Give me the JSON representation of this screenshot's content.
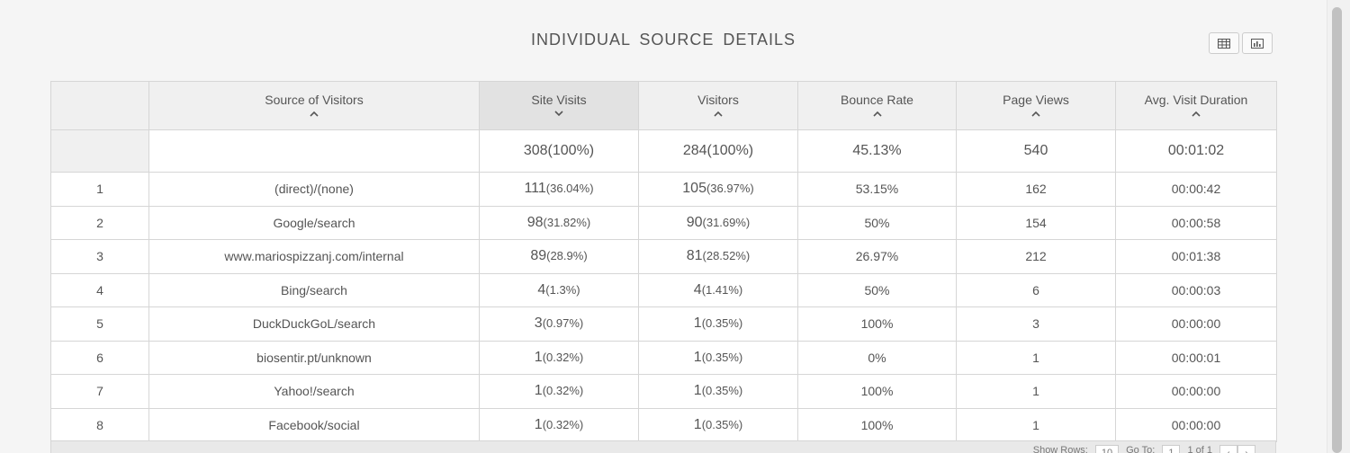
{
  "title": "INDIVIDUAL  SOURCE  DETAILS",
  "view_toggle": {
    "table_icon": "table-grid-icon",
    "chart_icon": "bar-chart-icon"
  },
  "table": {
    "columns": [
      {
        "label": "",
        "sort": "none"
      },
      {
        "label": "Source of Visitors",
        "sort": "up"
      },
      {
        "label": "Site Visits",
        "sort": "down"
      },
      {
        "label": "Visitors",
        "sort": "up"
      },
      {
        "label": "Bounce Rate",
        "sort": "up"
      },
      {
        "label": "Page Views",
        "sort": "up"
      },
      {
        "label": "Avg. Visit Duration",
        "sort": "up"
      }
    ],
    "totals": {
      "site_visits": "308(100%)",
      "visitors": "284(100%)",
      "bounce_rate": "45.13%",
      "page_views": "540",
      "avg_duration": "00:01:02"
    },
    "rows": [
      {
        "index": "1",
        "source": "(direct)/(none)",
        "visits": "111",
        "visits_pct": "(36.04%)",
        "visitors": "105",
        "visitors_pct": "(36.97%)",
        "bounce": "53.15%",
        "views": "162",
        "duration": "00:00:42"
      },
      {
        "index": "2",
        "source": "Google/search",
        "visits": "98",
        "visits_pct": "(31.82%)",
        "visitors": "90",
        "visitors_pct": "(31.69%)",
        "bounce": "50%",
        "views": "154",
        "duration": "00:00:58"
      },
      {
        "index": "3",
        "source": "www.mariospizzanj.com/internal",
        "visits": "89",
        "visits_pct": "(28.9%)",
        "visitors": "81",
        "visitors_pct": "(28.52%)",
        "bounce": "26.97%",
        "views": "212",
        "duration": "00:01:38"
      },
      {
        "index": "4",
        "source": "Bing/search",
        "visits": "4",
        "visits_pct": "(1.3%)",
        "visitors": "4",
        "visitors_pct": "(1.41%)",
        "bounce": "50%",
        "views": "6",
        "duration": "00:00:03"
      },
      {
        "index": "5",
        "source": "DuckDuckGoL/search",
        "visits": "3",
        "visits_pct": "(0.97%)",
        "visitors": "1",
        "visitors_pct": "(0.35%)",
        "bounce": "100%",
        "views": "3",
        "duration": "00:00:00"
      },
      {
        "index": "6",
        "source": "biosentir.pt/unknown",
        "visits": "1",
        "visits_pct": "(0.32%)",
        "visitors": "1",
        "visitors_pct": "(0.35%)",
        "bounce": "0%",
        "views": "1",
        "duration": "00:00:01"
      },
      {
        "index": "7",
        "source": "Yahoo!/search",
        "visits": "1",
        "visits_pct": "(0.32%)",
        "visitors": "1",
        "visitors_pct": "(0.35%)",
        "bounce": "100%",
        "views": "1",
        "duration": "00:00:00"
      },
      {
        "index": "8",
        "source": "Facebook/social",
        "visits": "1",
        "visits_pct": "(0.32%)",
        "visitors": "1",
        "visitors_pct": "(0.35%)",
        "bounce": "100%",
        "views": "1",
        "duration": "00:00:00"
      }
    ]
  },
  "footer": {
    "show_rows_label": "Show Rows:",
    "show_rows_value": "10",
    "goto_label": "Go To:",
    "goto_value": "1",
    "page_info": "1 of 1",
    "prev_icon": "chevron-left-icon",
    "next_icon": "chevron-right-icon"
  }
}
